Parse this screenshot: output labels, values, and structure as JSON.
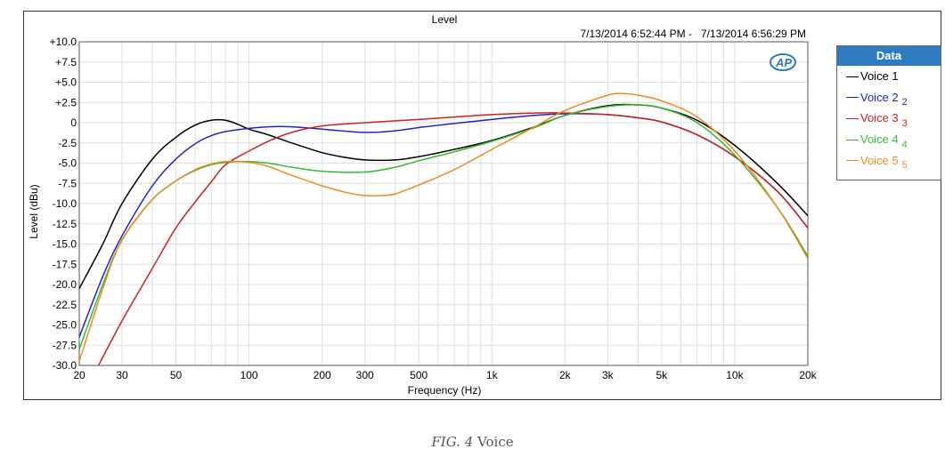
{
  "chart_data": {
    "type": "line",
    "title": "Level",
    "timestamp_range": "7/13/2014 6:52:44 PM -   7/13/2014 6:56:29 PM",
    "xlabel": "Frequency (Hz)",
    "ylabel": "Level (dBu)",
    "xscale": "log",
    "xlim": [
      20,
      20000
    ],
    "ylim": [
      -30,
      10
    ],
    "grid": true,
    "legend_title": "Data",
    "legend_placement": "right",
    "x_ticks": [
      {
        "value": 20,
        "label": "20"
      },
      {
        "value": 30,
        "label": "30"
      },
      {
        "value": 50,
        "label": "50"
      },
      {
        "value": 100,
        "label": "100"
      },
      {
        "value": 200,
        "label": "200"
      },
      {
        "value": 300,
        "label": "300"
      },
      {
        "value": 500,
        "label": "500"
      },
      {
        "value": 1000,
        "label": "1k"
      },
      {
        "value": 2000,
        "label": "2k"
      },
      {
        "value": 3000,
        "label": "3k"
      },
      {
        "value": 5000,
        "label": "5k"
      },
      {
        "value": 10000,
        "label": "10k"
      },
      {
        "value": 20000,
        "label": "20k"
      }
    ],
    "y_ticks": [
      {
        "value": 10,
        "label": "+10.0"
      },
      {
        "value": 7.5,
        "label": "+7.5"
      },
      {
        "value": 5,
        "label": "+5.0"
      },
      {
        "value": 2.5,
        "label": "+2.5"
      },
      {
        "value": 0,
        "label": "0"
      },
      {
        "value": -2.5,
        "label": "-2.5"
      },
      {
        "value": -5,
        "label": "-5.0"
      },
      {
        "value": -7.5,
        "label": "-7.5"
      },
      {
        "value": -10,
        "label": "-10.0"
      },
      {
        "value": -12.5,
        "label": "-12.5"
      },
      {
        "value": -15,
        "label": "-15.0"
      },
      {
        "value": -17.5,
        "label": "-17.5"
      },
      {
        "value": -20,
        "label": "-20.0"
      },
      {
        "value": -22.5,
        "label": "-22.5"
      },
      {
        "value": -25,
        "label": "-25.0"
      },
      {
        "value": -27.5,
        "label": "-27.5"
      },
      {
        "value": -30,
        "label": "-30.0"
      }
    ],
    "series": [
      {
        "name": "Voice 1",
        "index": "",
        "color": "#000000",
        "points": [
          [
            20,
            -20.5
          ],
          [
            25,
            -15
          ],
          [
            30,
            -10
          ],
          [
            40,
            -4.5
          ],
          [
            50,
            -1.8
          ],
          [
            60,
            -0.3
          ],
          [
            70,
            0.3
          ],
          [
            80,
            0.3
          ],
          [
            90,
            -0.2
          ],
          [
            100,
            -0.8
          ],
          [
            120,
            -1.5
          ],
          [
            150,
            -2.5
          ],
          [
            200,
            -3.7
          ],
          [
            250,
            -4.3
          ],
          [
            300,
            -4.6
          ],
          [
            400,
            -4.6
          ],
          [
            500,
            -4.2
          ],
          [
            700,
            -3.3
          ],
          [
            1000,
            -2.2
          ],
          [
            1500,
            -0.5
          ],
          [
            2000,
            0.9
          ],
          [
            3000,
            2.1
          ],
          [
            4000,
            2.2
          ],
          [
            5000,
            1.8
          ],
          [
            7000,
            0.3
          ],
          [
            10000,
            -2.8
          ],
          [
            15000,
            -7.5
          ],
          [
            20000,
            -11.5
          ]
        ]
      },
      {
        "name": "Voice 2",
        "index": "2",
        "color": "#2222cc",
        "points": [
          [
            20,
            -26.5
          ],
          [
            25,
            -19
          ],
          [
            30,
            -14
          ],
          [
            40,
            -7.8
          ],
          [
            50,
            -4.5
          ],
          [
            60,
            -2.6
          ],
          [
            70,
            -1.6
          ],
          [
            80,
            -1.1
          ],
          [
            100,
            -0.7
          ],
          [
            120,
            -0.5
          ],
          [
            150,
            -0.5
          ],
          [
            200,
            -0.8
          ],
          [
            300,
            -1.2
          ],
          [
            400,
            -1.0
          ],
          [
            500,
            -0.6
          ],
          [
            700,
            -0.1
          ],
          [
            1000,
            0.4
          ],
          [
            1500,
            0.9
          ],
          [
            2000,
            1.1
          ],
          [
            3000,
            1.0
          ],
          [
            4000,
            0.6
          ],
          [
            5000,
            0.1
          ],
          [
            7000,
            -1.5
          ],
          [
            10000,
            -4.2
          ],
          [
            15000,
            -8.5
          ],
          [
            20000,
            -13
          ]
        ]
      },
      {
        "name": "Voice 3",
        "index": "3",
        "color": "#cc2222",
        "points": [
          [
            24,
            -30
          ],
          [
            30,
            -24.5
          ],
          [
            40,
            -18
          ],
          [
            50,
            -13
          ],
          [
            60,
            -9.8
          ],
          [
            70,
            -7.3
          ],
          [
            80,
            -5.2
          ],
          [
            100,
            -3.5
          ],
          [
            120,
            -2.3
          ],
          [
            150,
            -1.2
          ],
          [
            200,
            -0.4
          ],
          [
            300,
            0
          ],
          [
            500,
            0.4
          ],
          [
            700,
            0.7
          ],
          [
            1000,
            1.0
          ],
          [
            1500,
            1.2
          ],
          [
            2000,
            1.2
          ],
          [
            3000,
            1.0
          ],
          [
            4000,
            0.6
          ],
          [
            5000,
            0.1
          ],
          [
            7000,
            -1.5
          ],
          [
            10000,
            -4.2
          ],
          [
            15000,
            -8.5
          ],
          [
            20000,
            -13
          ]
        ]
      },
      {
        "name": "Voice 4",
        "index": "4",
        "color": "#33bb33",
        "points": [
          [
            20,
            -28
          ],
          [
            25,
            -20
          ],
          [
            30,
            -14.5
          ],
          [
            40,
            -9.5
          ],
          [
            50,
            -7.2
          ],
          [
            60,
            -5.9
          ],
          [
            70,
            -5.2
          ],
          [
            80,
            -4.9
          ],
          [
            100,
            -4.8
          ],
          [
            120,
            -5.0
          ],
          [
            150,
            -5.5
          ],
          [
            200,
            -6.0
          ],
          [
            300,
            -6.1
          ],
          [
            400,
            -5.5
          ],
          [
            500,
            -4.7
          ],
          [
            700,
            -3.6
          ],
          [
            1000,
            -2.3
          ],
          [
            1500,
            -0.6
          ],
          [
            2000,
            0.9
          ],
          [
            3000,
            2.0
          ],
          [
            4000,
            2.2
          ],
          [
            5000,
            1.8
          ],
          [
            7000,
            0
          ],
          [
            10000,
            -4.0
          ],
          [
            15000,
            -10.5
          ],
          [
            20000,
            -16.5
          ]
        ]
      },
      {
        "name": "Voice 5",
        "index": "5",
        "color": "#f08a20",
        "points": [
          [
            20,
            -29.5
          ],
          [
            25,
            -20.5
          ],
          [
            30,
            -14.5
          ],
          [
            40,
            -9.5
          ],
          [
            50,
            -7.2
          ],
          [
            60,
            -5.8
          ],
          [
            70,
            -5.1
          ],
          [
            80,
            -4.8
          ],
          [
            100,
            -4.9
          ],
          [
            120,
            -5.4
          ],
          [
            150,
            -6.5
          ],
          [
            200,
            -7.8
          ],
          [
            250,
            -8.6
          ],
          [
            300,
            -9.0
          ],
          [
            350,
            -9.0
          ],
          [
            400,
            -8.8
          ],
          [
            500,
            -7.7
          ],
          [
            700,
            -5.8
          ],
          [
            1000,
            -3.3
          ],
          [
            1500,
            -0.5
          ],
          [
            2000,
            1.5
          ],
          [
            3000,
            3.4
          ],
          [
            3500,
            3.6
          ],
          [
            4000,
            3.4
          ],
          [
            5000,
            2.7
          ],
          [
            7000,
            0.7
          ],
          [
            10000,
            -3.5
          ],
          [
            15000,
            -10.5
          ],
          [
            20000,
            -16.8
          ]
        ]
      }
    ]
  },
  "caption": {
    "fig": "FIG. 4",
    "text": "Voice"
  },
  "brand_logo": "AP"
}
